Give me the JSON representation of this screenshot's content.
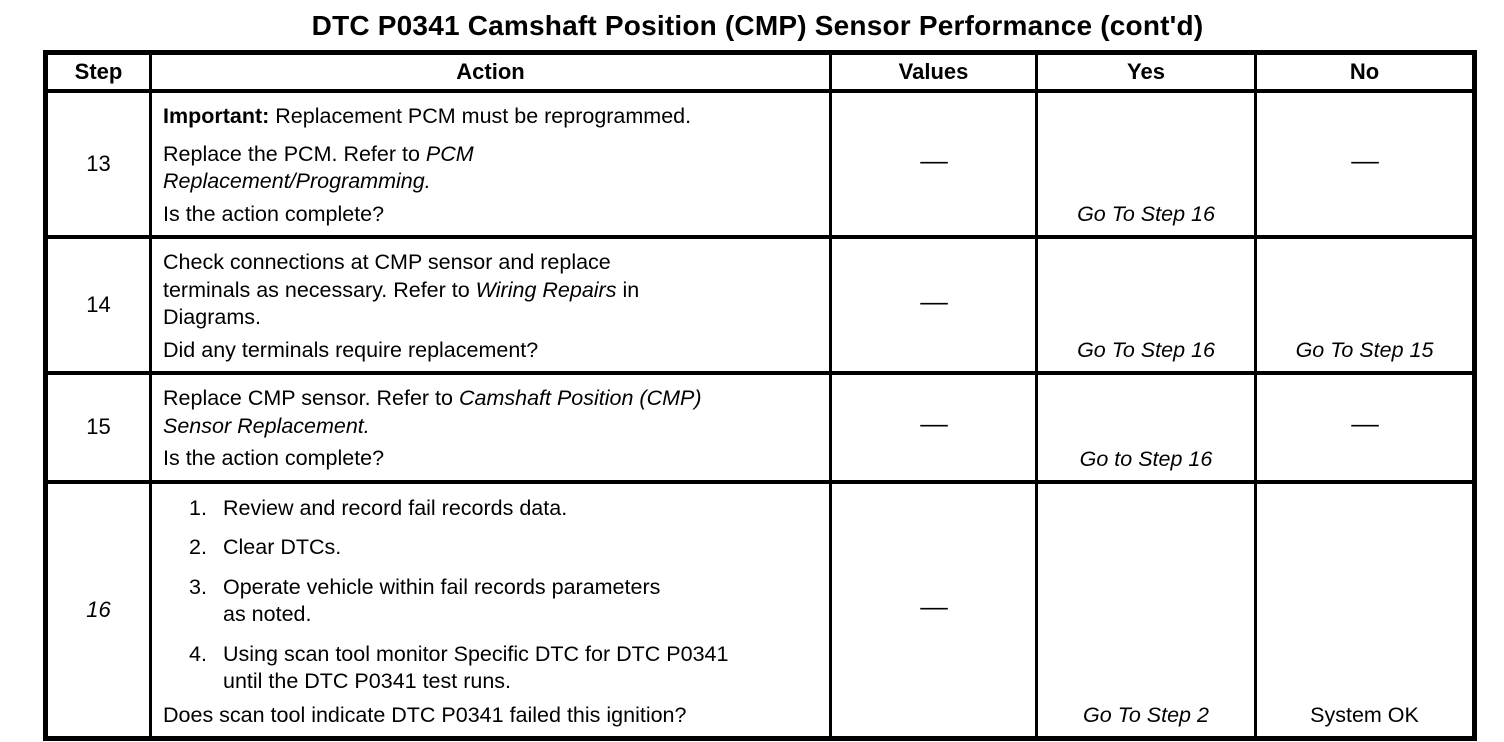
{
  "title": "DTC P0341 Camshaft Position (CMP) Sensor Performance  (cont'd)",
  "table": {
    "headers": [
      {
        "key": "step",
        "label": "Step"
      },
      {
        "key": "action",
        "label": "Action"
      },
      {
        "key": "values",
        "label": "Values"
      },
      {
        "key": "yes",
        "label": "Yes"
      },
      {
        "key": "no",
        "label": "No"
      }
    ],
    "rows": [
      {
        "step": "13",
        "step_italic": false,
        "action_blocks": [
          {
            "kind": "p",
            "segments": [
              {
                "text": "Important:",
                "bold": true
              },
              {
                "text": " Replacement PCM must be reprogrammed."
              }
            ]
          },
          {
            "kind": "p",
            "segments": [
              {
                "text": "Replace the PCM. Refer to "
              },
              {
                "text": "PCM\nReplacement/Programming.",
                "italic": true
              }
            ]
          }
        ],
        "question": "Is the action complete?",
        "values": {
          "center": "—"
        },
        "yes": {
          "bottom": "Go To Step 16",
          "italic": true
        },
        "no": {
          "center": "—"
        }
      },
      {
        "step": "14",
        "step_italic": false,
        "action_blocks": [
          {
            "kind": "p",
            "segments": [
              {
                "text": "Check connections at CMP sensor and replace\nterminals as necessary. Refer to "
              },
              {
                "text": "Wiring Repairs",
                "italic": true
              },
              {
                "text": " in\nDiagrams."
              }
            ]
          }
        ],
        "question": "Did any terminals require replacement?",
        "values": {
          "center": "—"
        },
        "yes": {
          "bottom": "Go To Step 16",
          "italic": true
        },
        "no": {
          "bottom": "Go To Step 15",
          "italic": true
        }
      },
      {
        "step": "15",
        "step_italic": false,
        "action_blocks": [
          {
            "kind": "p",
            "segments": [
              {
                "text": "Replace CMP sensor. Refer to "
              },
              {
                "text": "Camshaft Position (CMP)\nSensor Replacement.",
                "italic": true
              }
            ]
          }
        ],
        "question": "Is the action complete?",
        "values": {
          "center": "—"
        },
        "yes": {
          "bottom": "Go to Step 16",
          "italic": true
        },
        "no": {
          "center": "—"
        }
      },
      {
        "step": "16",
        "step_italic": true,
        "action_blocks": [
          {
            "kind": "li",
            "num": "1.",
            "segments": [
              {
                "text": "Review and record fail records data."
              }
            ]
          },
          {
            "kind": "li",
            "num": "2.",
            "segments": [
              {
                "text": "Clear DTCs."
              }
            ]
          },
          {
            "kind": "li",
            "num": "3.",
            "segments": [
              {
                "text": "Operate vehicle within fail records parameters\nas noted."
              }
            ]
          },
          {
            "kind": "li",
            "num": "4.",
            "segments": [
              {
                "text": "Using scan tool monitor Specific DTC for DTC P0341\nuntil the DTC P0341 test runs."
              }
            ]
          }
        ],
        "question": "Does scan tool indicate DTC P0341 failed this ignition?",
        "values": {
          "center": "—"
        },
        "yes": {
          "bottom": "Go To Step 2",
          "italic": true
        },
        "no": {
          "bottom": "System OK",
          "italic": false
        }
      }
    ]
  }
}
